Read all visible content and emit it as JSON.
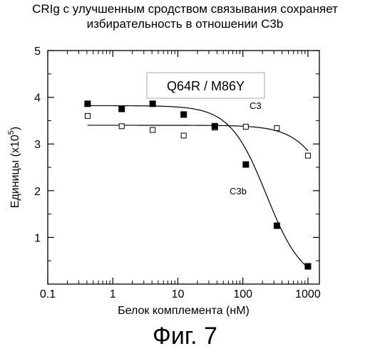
{
  "chart_data": {
    "type": "scatter",
    "title_lines": [
      "CRIg с улучшенным сродством связывания сохраняет",
      "избирательность в отношении C3b"
    ],
    "inset_label": "Q64R / M86Y",
    "xlabel": "Белок комплемента (нМ)",
    "ylabel_main": "Единицы (x10",
    "ylabel_sup": "5",
    "ylabel_close": ")",
    "x_scale": "log",
    "xlim": [
      0.1,
      1500
    ],
    "ylim": [
      0,
      5
    ],
    "x_ticks": [
      0.1,
      1,
      10,
      100,
      1000
    ],
    "x_tick_labels": [
      "0.1",
      "1",
      "10",
      "100",
      "1000"
    ],
    "y_ticks": [
      1,
      2,
      3,
      4,
      5
    ],
    "y_tick_labels": [
      "1",
      "2",
      "3",
      "4",
      "5"
    ],
    "grid": false,
    "series": [
      {
        "name": "C3",
        "marker": "open-square",
        "x": [
          0.41,
          1.37,
          4.1,
          12.3,
          37,
          111,
          333,
          1000
        ],
        "y": [
          3.6,
          3.38,
          3.3,
          3.18,
          3.35,
          3.37,
          3.34,
          2.75
        ],
        "fit": {
          "type": "logistic",
          "top": 3.4,
          "bottom": 0,
          "ec50": 3000,
          "hill": 1.5
        }
      },
      {
        "name": "C3b",
        "marker": "filled-square",
        "x": [
          0.41,
          1.37,
          4.1,
          12.3,
          37,
          111,
          333,
          1000
        ],
        "y": [
          3.86,
          3.75,
          3.86,
          3.63,
          3.38,
          2.56,
          1.25,
          0.38
        ],
        "fit": {
          "type": "logistic",
          "top": 3.82,
          "bottom": 0,
          "ec50": 230,
          "hill": 1.55
        }
      }
    ]
  },
  "figure_caption": "Фиг. 7"
}
